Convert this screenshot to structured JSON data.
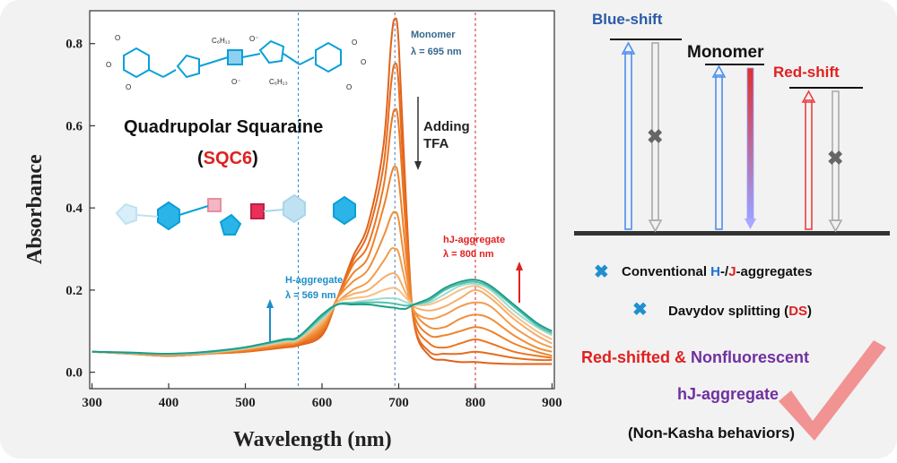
{
  "figure": {
    "compound_title": "Quadrupolar Squaraine",
    "paren_open": "(",
    "compound_code": "SQC6",
    "paren_close": ")",
    "structure_labels": [
      "C₆H₁₃",
      "C₆H₁₃",
      "O⁻",
      "O⁻",
      "O",
      "O",
      "O"
    ]
  },
  "annotations": {
    "monomer": {
      "label": "Monomer",
      "value": "λ = 695 nm"
    },
    "adding_tfa": {
      "line1": "Adding",
      "line2": "TFA"
    },
    "hj": {
      "label": "hJ-aggregate",
      "value": "λ = 800 nm"
    },
    "h": {
      "label": "H-aggregate",
      "value": "λ = 569 nm"
    }
  },
  "chart_data": {
    "type": "line",
    "xlabel": "Wavelength (nm)",
    "ylabel": "Absorbance",
    "xlim": [
      297,
      903
    ],
    "ylim": [
      -0.04,
      0.88
    ],
    "xticks": [
      300,
      400,
      500,
      600,
      700,
      800,
      900
    ],
    "yticks": [
      0.0,
      0.2,
      0.4,
      0.6,
      0.8
    ],
    "ytick_labels": [
      "0.0",
      "0.2",
      "0.4",
      "0.6",
      "0.8"
    ],
    "marker_lines": [
      {
        "x": 569,
        "color": "#1c8ec6"
      },
      {
        "x": 695,
        "color": "#5577aa"
      },
      {
        "x": 800,
        "color": "#e02020"
      }
    ],
    "x": [
      300,
      350,
      400,
      450,
      500,
      550,
      569,
      600,
      620,
      640,
      660,
      680,
      690,
      695,
      700,
      710,
      720,
      740,
      760,
      780,
      800,
      820,
      850,
      880,
      900
    ],
    "series": [
      {
        "color": "#e0621a",
        "values": [
          0.05,
          0.045,
          0.04,
          0.045,
          0.05,
          0.06,
          0.065,
          0.09,
          0.18,
          0.28,
          0.36,
          0.55,
          0.8,
          0.86,
          0.8,
          0.4,
          0.12,
          0.04,
          0.03,
          0.025,
          0.025,
          0.022,
          0.02,
          0.02,
          0.02
        ]
      },
      {
        "color": "#e66c1e",
        "values": [
          0.05,
          0.045,
          0.04,
          0.045,
          0.05,
          0.062,
          0.068,
          0.095,
          0.18,
          0.27,
          0.34,
          0.5,
          0.7,
          0.75,
          0.7,
          0.36,
          0.12,
          0.05,
          0.045,
          0.045,
          0.05,
          0.045,
          0.035,
          0.03,
          0.03
        ]
      },
      {
        "color": "#ea7624",
        "values": [
          0.05,
          0.045,
          0.04,
          0.045,
          0.052,
          0.064,
          0.07,
          0.1,
          0.18,
          0.26,
          0.31,
          0.45,
          0.6,
          0.64,
          0.6,
          0.33,
          0.13,
          0.07,
          0.06,
          0.07,
          0.08,
          0.07,
          0.05,
          0.04,
          0.035
        ]
      },
      {
        "color": "#ee822c",
        "values": [
          0.05,
          0.046,
          0.042,
          0.046,
          0.054,
          0.066,
          0.072,
          0.105,
          0.18,
          0.24,
          0.28,
          0.4,
          0.48,
          0.5,
          0.47,
          0.28,
          0.14,
          0.09,
          0.09,
          0.1,
          0.11,
          0.1,
          0.07,
          0.05,
          0.04
        ]
      },
      {
        "color": "#f08e38",
        "values": [
          0.05,
          0.046,
          0.042,
          0.046,
          0.055,
          0.068,
          0.074,
          0.11,
          0.18,
          0.22,
          0.25,
          0.33,
          0.38,
          0.39,
          0.37,
          0.24,
          0.15,
          0.11,
          0.11,
          0.13,
          0.14,
          0.13,
          0.09,
          0.06,
          0.05
        ]
      },
      {
        "color": "#f29c4c",
        "values": [
          0.05,
          0.046,
          0.043,
          0.047,
          0.056,
          0.07,
          0.076,
          0.115,
          0.17,
          0.2,
          0.22,
          0.27,
          0.3,
          0.3,
          0.29,
          0.21,
          0.15,
          0.13,
          0.14,
          0.16,
          0.17,
          0.16,
          0.11,
          0.075,
          0.06
        ]
      },
      {
        "color": "#f4ae6a",
        "values": [
          0.05,
          0.046,
          0.043,
          0.047,
          0.057,
          0.072,
          0.078,
          0.12,
          0.17,
          0.19,
          0.2,
          0.23,
          0.24,
          0.24,
          0.23,
          0.19,
          0.16,
          0.15,
          0.16,
          0.18,
          0.2,
          0.18,
          0.13,
          0.09,
          0.07
        ]
      },
      {
        "color": "#f6c086",
        "values": [
          0.05,
          0.047,
          0.044,
          0.048,
          0.058,
          0.074,
          0.08,
          0.125,
          0.17,
          0.18,
          0.185,
          0.2,
          0.205,
          0.205,
          0.2,
          0.18,
          0.165,
          0.165,
          0.18,
          0.2,
          0.21,
          0.19,
          0.14,
          0.1,
          0.08
        ]
      },
      {
        "color": "#9fdccf",
        "values": [
          0.05,
          0.047,
          0.044,
          0.048,
          0.059,
          0.076,
          0.082,
          0.13,
          0.165,
          0.17,
          0.175,
          0.18,
          0.18,
          0.18,
          0.178,
          0.17,
          0.165,
          0.17,
          0.19,
          0.21,
          0.215,
          0.2,
          0.15,
          0.11,
          0.09
        ]
      },
      {
        "color": "#4ec0aa",
        "values": [
          0.05,
          0.047,
          0.045,
          0.049,
          0.06,
          0.078,
          0.084,
          0.135,
          0.165,
          0.168,
          0.17,
          0.17,
          0.168,
          0.167,
          0.165,
          0.162,
          0.165,
          0.175,
          0.2,
          0.215,
          0.22,
          0.205,
          0.16,
          0.115,
          0.095
        ]
      },
      {
        "color": "#1f9c86",
        "values": [
          0.05,
          0.048,
          0.045,
          0.05,
          0.061,
          0.08,
          0.086,
          0.14,
          0.165,
          0.165,
          0.165,
          0.16,
          0.158,
          0.157,
          0.155,
          0.155,
          0.165,
          0.18,
          0.205,
          0.22,
          0.225,
          0.21,
          0.165,
          0.12,
          0.1
        ]
      }
    ]
  },
  "diagram": {
    "blue_shift": "Blue-shift",
    "monomer": "Monomer",
    "red_shift": "Red-shift"
  },
  "legend_text": {
    "conventional_prefix": "Conventional ",
    "h": "H",
    "sep": "-/",
    "j": "J",
    "conventional_suffix": "-aggregates",
    "davydov_prefix": "Davydov splitting (",
    "ds": "DS",
    "davydov_suffix": ")"
  },
  "conclusion": {
    "red_shifted": "Red-shifted & ",
    "nonfluorescent": "Nonfluorescent",
    "hj_aggregate": "hJ-aggregate",
    "non_kasha": "(Non-Kasha behaviors)"
  }
}
